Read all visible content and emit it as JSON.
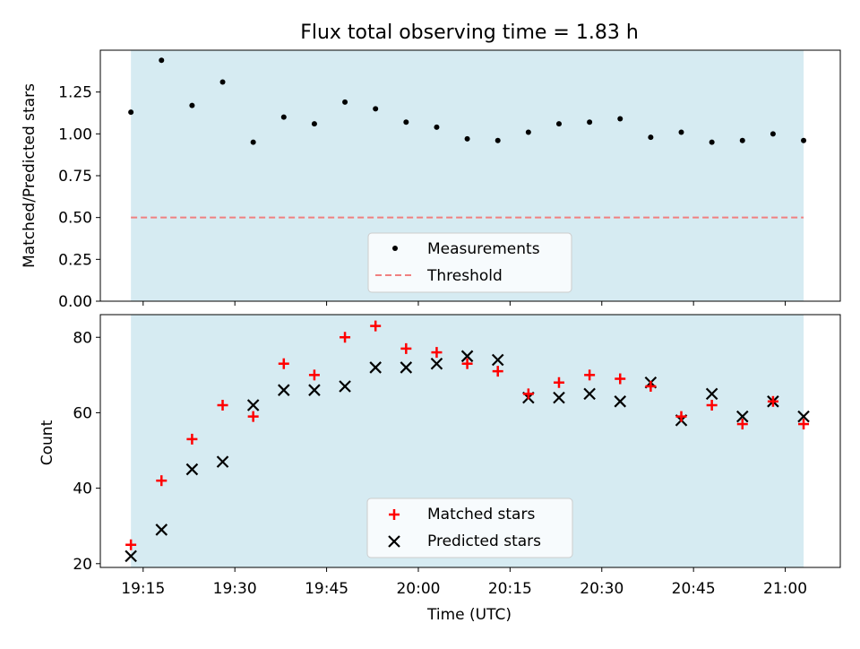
{
  "colors": {
    "band": "#add8e6",
    "matched": "#ff0000",
    "predicted": "#000000",
    "threshold": "#f08080",
    "measurement": "#000000"
  },
  "chart_data": [
    {
      "type": "scatter",
      "panel": "top",
      "title": "Flux total observing time = 1.83 h",
      "xlabel": "",
      "ylabel": "Matched/Predicted stars",
      "xlim": [
        "19:08",
        "21:09"
      ],
      "ylim": [
        0,
        1.5
      ],
      "yticks": [
        0.0,
        0.25,
        0.5,
        0.75,
        1.0,
        1.25
      ],
      "ytick_labels": [
        "0.00",
        "0.25",
        "0.50",
        "0.75",
        "1.00",
        "1.25"
      ],
      "shaded_span": [
        "19:13",
        "21:03"
      ],
      "threshold": 0.5,
      "series": [
        {
          "name": "Measurements",
          "marker": "dot",
          "x": [
            "19:13",
            "19:18",
            "19:23",
            "19:28",
            "19:33",
            "19:38",
            "19:43",
            "19:48",
            "19:53",
            "19:58",
            "20:03",
            "20:08",
            "20:13",
            "20:18",
            "20:23",
            "20:28",
            "20:33",
            "20:38",
            "20:43",
            "20:48",
            "20:53",
            "20:58",
            "21:03"
          ],
          "values": [
            1.13,
            1.44,
            1.17,
            1.31,
            0.95,
            1.1,
            1.06,
            1.19,
            1.15,
            1.07,
            1.04,
            0.97,
            0.96,
            1.01,
            1.06,
            1.07,
            1.09,
            0.98,
            1.01,
            0.95,
            0.96,
            1.0,
            0.96
          ]
        },
        {
          "name": "Threshold",
          "marker": "dashed-line",
          "values": [
            0.5
          ]
        }
      ],
      "legend": [
        "Measurements",
        "Threshold"
      ],
      "legend_position": "lower-center"
    },
    {
      "type": "scatter",
      "panel": "bottom",
      "title": "",
      "xlabel": "Time (UTC)",
      "ylabel": "Count",
      "xlim": [
        "19:08",
        "21:09"
      ],
      "ylim": [
        19,
        86
      ],
      "yticks": [
        20,
        40,
        60,
        80
      ],
      "ytick_labels": [
        "20",
        "40",
        "60",
        "80"
      ],
      "xticks": [
        "19:15",
        "19:30",
        "19:45",
        "20:00",
        "20:15",
        "20:30",
        "20:45",
        "21:00"
      ],
      "shaded_span": [
        "19:13",
        "21:03"
      ],
      "categories": [
        "19:13",
        "19:18",
        "19:23",
        "19:28",
        "19:33",
        "19:38",
        "19:43",
        "19:48",
        "19:53",
        "19:58",
        "20:03",
        "20:08",
        "20:13",
        "20:18",
        "20:23",
        "20:28",
        "20:33",
        "20:38",
        "20:43",
        "20:48",
        "20:53",
        "20:58",
        "21:03"
      ],
      "series": [
        {
          "name": "Matched stars",
          "marker": "plus",
          "values": [
            25,
            42,
            53,
            62,
            59,
            73,
            70,
            80,
            83,
            77,
            76,
            73,
            71,
            65,
            68,
            70,
            69,
            67,
            59,
            62,
            57,
            63,
            57
          ]
        },
        {
          "name": "Predicted stars",
          "marker": "x",
          "values": [
            22,
            29,
            45,
            47,
            62,
            66,
            66,
            67,
            72,
            72,
            73,
            75,
            74,
            64,
            64,
            65,
            63,
            68,
            58,
            65,
            59,
            63,
            59
          ]
        }
      ],
      "legend": [
        "Matched stars",
        "Predicted stars"
      ],
      "legend_position": "lower-center"
    }
  ]
}
